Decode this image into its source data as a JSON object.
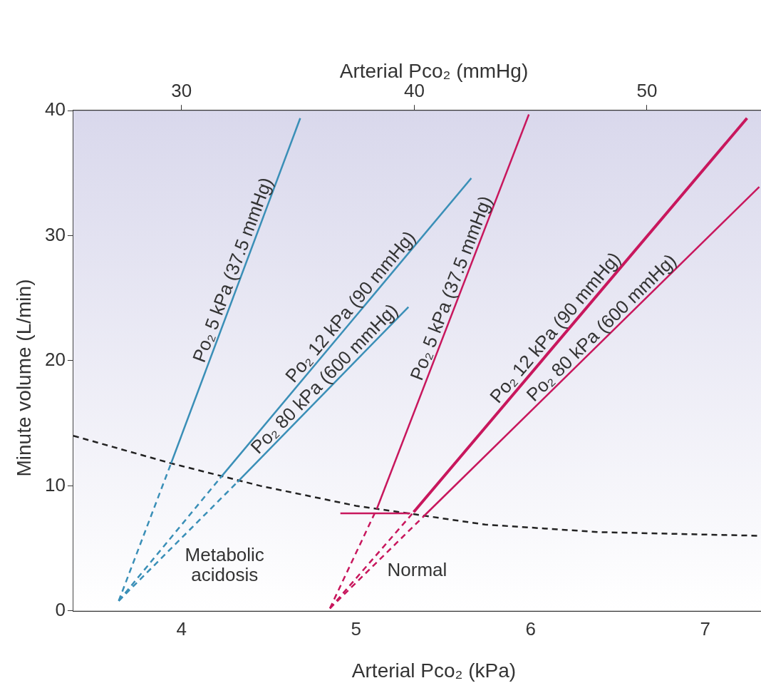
{
  "chart_data": {
    "type": "line",
    "xlabel": "Arterial Pco₂ (kPa)",
    "x2label": "Arterial Pco₂ (mmHg)",
    "ylabel": "Minute volume (L/min)",
    "xlim": [
      3.38,
      7.32
    ],
    "xticks": [
      4,
      5,
      6,
      7
    ],
    "x2lim": [
      25.35,
      54.9
    ],
    "x2ticks": [
      30,
      40,
      50
    ],
    "ylim": [
      0,
      40
    ],
    "yticks": [
      0,
      10,
      20,
      30,
      40
    ],
    "grid": false,
    "legend": false,
    "marker": "none",
    "series": [
      {
        "color": "#3a8fb7",
        "line_style": "dashed",
        "x": [
          3.64,
          3.94
        ],
        "values": [
          0.8,
          11.8
        ]
      },
      {
        "name": "Po₂ 5 kPa (37.5 mmHg)",
        "color": "#3a8fb7",
        "line_style": "solid",
        "x": [
          3.94,
          4.68
        ],
        "values": [
          11.8,
          39.4
        ]
      },
      {
        "color": "#3a8fb7",
        "line_style": "dashed",
        "x": [
          3.64,
          4.22
        ],
        "values": [
          0.8,
          10.6
        ]
      },
      {
        "name": "Po₂ 12 kPa (90 mmHg)",
        "color": "#3a8fb7",
        "line_style": "solid",
        "x": [
          4.22,
          5.66
        ],
        "values": [
          10.6,
          34.6
        ]
      },
      {
        "color": "#3a8fb7",
        "line_style": "dashed",
        "x": [
          3.64,
          4.32
        ],
        "values": [
          0.8,
          10.3
        ]
      },
      {
        "name": "Po₂ 80 kPa (600 mmHg)",
        "color": "#3a8fb7",
        "line_style": "solid",
        "x": [
          4.32,
          5.3
        ],
        "values": [
          10.3,
          24.3
        ]
      },
      {
        "color": "#c8175d",
        "line_style": "dashed",
        "x": [
          4.85,
          5.12
        ],
        "values": [
          0.2,
          8.2
        ]
      },
      {
        "name": "Po₂ 5 kPa (37.5 mmHg)",
        "color": "#c8175d",
        "line_style": "solid",
        "x": [
          5.12,
          5.99
        ],
        "values": [
          8.2,
          39.7
        ]
      },
      {
        "color": "#c8175d",
        "line_style": "dashed",
        "x": [
          4.85,
          5.33
        ],
        "values": [
          0.2,
          7.9
        ]
      },
      {
        "name": "Po₂ 12 kPa (90 mmHg)",
        "color": "#c8175d",
        "line_style": "solid",
        "x": [
          5.33,
          7.24
        ],
        "values": [
          7.9,
          39.4
        ]
      },
      {
        "color": "#c8175d",
        "line_style": "dashed",
        "x": [
          4.85,
          5.39
        ],
        "values": [
          0.2,
          7.6
        ]
      },
      {
        "name": "Po₂ 80 kPa (600 mmHg)",
        "color": "#c8175d",
        "line_style": "solid",
        "x": [
          5.39,
          7.31
        ],
        "values": [
          7.6,
          33.9
        ]
      },
      {
        "color": "#c8175d",
        "line_style": "solid",
        "x": [
          4.91,
          5.31
        ],
        "values": [
          7.8,
          7.8
        ]
      },
      {
        "color": "#222222",
        "line_style": "dashed",
        "x": [
          3.38,
          3.94,
          4.45,
          5.0,
          5.74,
          6.39,
          7.32
        ],
        "values": [
          14.0,
          11.8,
          10.0,
          8.4,
          6.9,
          6.3,
          6.0
        ]
      }
    ],
    "annotations": [
      "Metabolic acidosis",
      "Normal"
    ]
  }
}
